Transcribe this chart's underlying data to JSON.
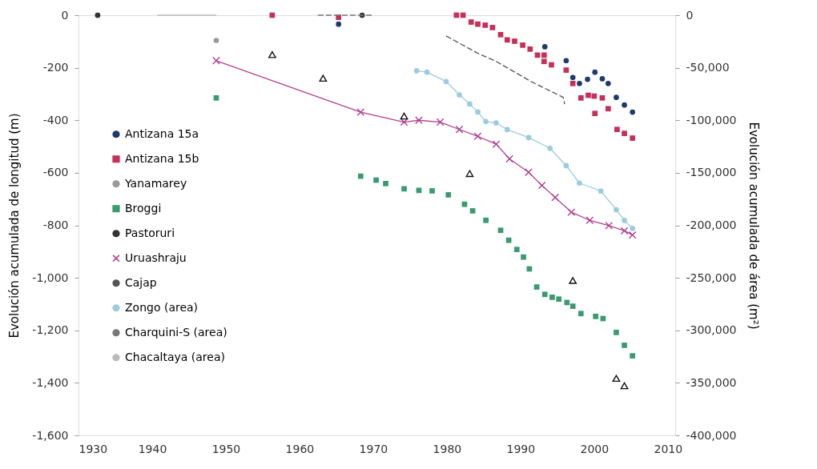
{
  "chart_data": {
    "type": "scatter",
    "ylabel": "Evolución acumulada de longitud (m)",
    "y2label": "Evolución acumulada de área (m²)",
    "xlim": [
      1930,
      2011
    ],
    "xticks": [
      1930,
      1940,
      1950,
      1960,
      1970,
      1980,
      1990,
      2000,
      2010
    ],
    "ylim": [
      -1600,
      0
    ],
    "yticks": [
      {
        "value": -1600,
        "label": "-1,600"
      },
      {
        "value": -1400,
        "label": "-1,400"
      },
      {
        "value": -1200,
        "label": "-1,200"
      },
      {
        "value": -1000,
        "label": "-1,000"
      },
      -800,
      -600,
      -400,
      -200,
      0
    ],
    "y2lim": [
      -400000,
      0
    ],
    "y2ticks": [
      {
        "value": -400000,
        "label": "-400,000"
      },
      {
        "value": -350000,
        "label": "-350,000"
      },
      {
        "value": -300000,
        "label": "-300,000"
      },
      {
        "value": -250000,
        "label": "-250,000"
      },
      {
        "value": -200000,
        "label": "-200,000"
      },
      {
        "value": -150000,
        "label": "-150,000"
      },
      {
        "value": -100000,
        "label": "-100,000"
      },
      {
        "value": -50000,
        "label": "-50,000"
      },
      0
    ],
    "grid": false,
    "legend": "left",
    "series": [
      {
        "name": "Antizana 15a",
        "color": "#1f3a6e",
        "marker": "circle",
        "x": [
          1965.3,
          1993.3,
          1996.2,
          1997.1,
          1998.0,
          1999.1,
          2000.1,
          2001.1,
          2001.9,
          2003.0,
          2004.1,
          2005.2
        ],
        "values": [
          -34,
          -120,
          -173,
          -237,
          -260,
          -244,
          -217,
          -242,
          -260,
          -313,
          -342,
          -369
        ]
      },
      {
        "name": "Antizana 15b",
        "color": "#c4305a",
        "marker": "square",
        "x": [
          1956.3,
          1965.3,
          1981.3,
          1982.2,
          1983.3,
          1984.2,
          1985.2,
          1986.2,
          1987.3,
          1988.2,
          1989.2,
          1990.3,
          1991.3,
          1992.3,
          1993.2,
          1993.2,
          1994.2,
          1996.2,
          1997.1,
          1998.2,
          1999.2,
          2000.0,
          2001.1,
          2000.1,
          2001.9,
          2003.1,
          2004.1,
          2005.2
        ],
        "values": [
          0,
          -8,
          0,
          0,
          -26,
          -34,
          -38,
          -47,
          -74,
          -94,
          -99,
          -114,
          -129,
          -152,
          -152,
          -176,
          -189,
          -209,
          -260,
          -315,
          -305,
          -308,
          -315,
          -374,
          -356,
          -435,
          -450,
          -468
        ]
      },
      {
        "name": "Yanamarey",
        "color": "#999999",
        "marker": "circle",
        "x": [
          1932.6,
          1948.7
        ],
        "values": [
          0,
          -96
        ]
      },
      {
        "name": "Broggi",
        "color": "#3a9a70",
        "marker": "square",
        "x": [
          1948.7,
          1968.3,
          1970.4,
          1971.7,
          1974.2,
          1976.2,
          1978.0,
          1980.2,
          1982.4,
          1983.5,
          1985.3,
          1987.3,
          1988.4,
          1989.5,
          1990.4,
          1991.2,
          1992.2,
          1993.3,
          1994.3,
          1995.2,
          1996.3,
          1997.1,
          1998.2,
          2000.2,
          2001.2,
          2003.0,
          2004.1,
          2005.2
        ],
        "values": [
          -315,
          -613,
          -628,
          -641,
          -661,
          -667,
          -669,
          -684,
          -720,
          -745,
          -781,
          -819,
          -857,
          -892,
          -921,
          -966,
          -1035,
          -1063,
          -1074,
          -1081,
          -1094,
          -1108,
          -1136,
          -1147,
          -1155,
          -1208,
          -1257,
          -1297
        ]
      },
      {
        "name": "Pastoruri",
        "color": "#333333",
        "marker": "circle",
        "x": [
          1932.6,
          1968.5
        ],
        "values": [
          0,
          0
        ]
      },
      {
        "name": "Uruashraju",
        "color": "#b0408f",
        "type": "line",
        "marker": "cross",
        "line_style": "solid",
        "x": [
          1948.7,
          1968.3,
          1974.2,
          1976.2,
          1979.1,
          1981.7,
          1984.2,
          1986.7,
          1988.5,
          1991.1,
          1992.9,
          1994.7,
          1996.9,
          1999.4,
          2002.0,
          2004.1,
          2005.2
        ],
        "values": [
          -173,
          -369,
          -407,
          -400,
          -407,
          -435,
          -461,
          -491,
          -547,
          -598,
          -648,
          -694,
          -750,
          -781,
          -801,
          -821,
          -837
        ]
      },
      {
        "name": "Cajap",
        "color": "#555555",
        "type": "line",
        "marker": "none",
        "line_style": "dashed",
        "x": [
          1979.9,
          1984.2,
          1986.7,
          1991.4,
          1995.8,
          1996.0
        ],
        "values": [
          -79,
          -145,
          -176,
          -252,
          -313,
          -339
        ]
      },
      {
        "name": "Zongo (area)",
        "color": "#9ccbe0",
        "type": "line",
        "marker": "circle",
        "line_style": "solid",
        "axis": "y2",
        "x": [
          1975.9,
          1977.3,
          1979.9,
          1981.7,
          1983.1,
          1984.2,
          1985.3,
          1986.7,
          1988.2,
          1991.1,
          1994.0,
          1996.2,
          1998.0,
          2000.9,
          2003.0,
          2004.1,
          2005.2
        ],
        "values": [
          -52900,
          -54200,
          -63100,
          -75800,
          -84500,
          -92100,
          -101200,
          -102500,
          -108900,
          -116500,
          -126700,
          -143200,
          -159800,
          -167400,
          -185200,
          -195400,
          -203000
        ]
      },
      {
        "name": "Charquini-S (area)",
        "color": "#777777",
        "type": "line",
        "marker": "none",
        "line_style": "dashed",
        "axis": "y2",
        "x": [
          1962.5,
          1966.0,
          1970.0
        ],
        "values": [
          0,
          0,
          0
        ]
      },
      {
        "name": "Chacaltaya (area)",
        "color": "#bbbbbb",
        "type": "line",
        "marker": "none",
        "line_style": "solid",
        "axis": "y2",
        "x": [
          1940.7,
          1948.7
        ],
        "values": [
          0,
          0
        ]
      },
      {
        "color": "#111111",
        "marker": "triangle",
        "x": [
          1956.3,
          1963.2,
          1974.2,
          1983.1,
          1997.1,
          2003.0,
          2004.1
        ],
        "values": [
          -150,
          -240,
          -384,
          -603,
          -1010,
          -1383,
          -1411
        ]
      }
    ]
  }
}
